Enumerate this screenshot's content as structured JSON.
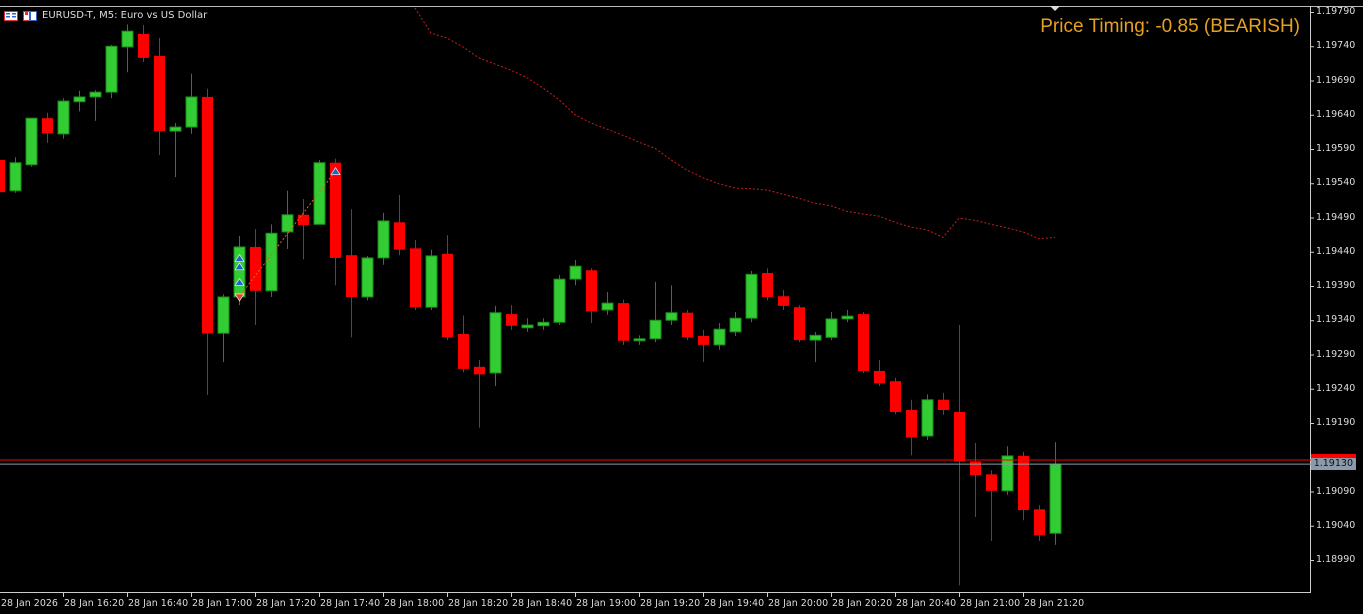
{
  "header": {
    "symbol_title": "EURUSD-T, M5:  Euro vs US Dollar",
    "icons": [
      "chart-list-icon",
      "chart-window-icon"
    ]
  },
  "indicator": {
    "price_timing_text": "Price Timing: -0.85 (BEARISH)",
    "color": "#e8a020"
  },
  "colors": {
    "bull": "#32cd32",
    "bull_border": "#1a8a1a",
    "bear": "#ff0000",
    "ma_line": "#c81e1e",
    "ask_line": "#ff0000",
    "bid_line": "#8a9aa8",
    "background": "#000000"
  },
  "price_axis": {
    "labels": [
      "1.19790",
      "1.19740",
      "1.19690",
      "1.19640",
      "1.19590",
      "1.19540",
      "1.19490",
      "1.19440",
      "1.19390",
      "1.19340",
      "1.19290",
      "1.19240",
      "1.19190",
      "1.19090",
      "1.19040",
      "1.18990"
    ],
    "current_price": "1.19130"
  },
  "time_axis": {
    "labels": [
      "28 Jan 2026",
      "28 Jan 16:20",
      "28 Jan 16:40",
      "28 Jan 17:00",
      "28 Jan 17:20",
      "28 Jan 17:40",
      "28 Jan 18:00",
      "28 Jan 18:20",
      "28 Jan 18:40",
      "28 Jan 19:00",
      "28 Jan 19:20",
      "28 Jan 19:40",
      "28 Jan 20:00",
      "28 Jan 20:20",
      "28 Jan 20:40",
      "28 Jan 21:00",
      "28 Jan 21:20"
    ]
  },
  "chart_data": {
    "type": "candlestick",
    "timeframe": "M5",
    "ylim": [
      1.1896,
      1.198
    ],
    "ohlc": [
      [
        1.19574,
        1.1958,
        1.19527,
        1.19527
      ],
      [
        1.19529,
        1.19578,
        1.19526,
        1.1957
      ],
      [
        1.19567,
        1.19635,
        1.19564,
        1.19635
      ],
      [
        1.19635,
        1.19643,
        1.19599,
        1.19613
      ],
      [
        1.19612,
        1.19664,
        1.19605,
        1.1966
      ],
      [
        1.19659,
        1.19675,
        1.19645,
        1.19666
      ],
      [
        1.19666,
        1.19676,
        1.19631,
        1.19673
      ],
      [
        1.19673,
        1.19742,
        1.19664,
        1.1974
      ],
      [
        1.19739,
        1.19772,
        1.19702,
        1.19762
      ],
      [
        1.19758,
        1.19771,
        1.19717,
        1.19723
      ],
      [
        1.19726,
        1.19752,
        1.19581,
        1.19616
      ],
      [
        1.19616,
        1.19628,
        1.19549,
        1.19622
      ],
      [
        1.19622,
        1.197,
        1.19612,
        1.19666
      ],
      [
        1.19666,
        1.19678,
        1.19231,
        1.19321
      ],
      [
        1.19321,
        1.19378,
        1.19279,
        1.19374
      ],
      [
        1.19374,
        1.19463,
        1.19362,
        1.19447
      ],
      [
        1.19447,
        1.19473,
        1.19333,
        1.19383
      ],
      [
        1.19383,
        1.1948,
        1.19374,
        1.19467
      ],
      [
        1.19469,
        1.19529,
        1.19444,
        1.19494
      ],
      [
        1.19494,
        1.19517,
        1.19429,
        1.19479
      ],
      [
        1.1948,
        1.19574,
        1.1948,
        1.1957
      ],
      [
        1.1957,
        1.19576,
        1.19391,
        1.19431
      ],
      [
        1.19435,
        1.19502,
        1.19315,
        1.19374
      ],
      [
        1.19374,
        1.19434,
        1.19369,
        1.19431
      ],
      [
        1.19431,
        1.19497,
        1.19421,
        1.19485
      ],
      [
        1.19483,
        1.19523,
        1.19435,
        1.19443
      ],
      [
        1.19445,
        1.19457,
        1.19355,
        1.19359
      ],
      [
        1.19359,
        1.19443,
        1.19355,
        1.19434
      ],
      [
        1.19437,
        1.19464,
        1.19311,
        1.19315
      ],
      [
        1.1932,
        1.19347,
        1.19264,
        1.19269
      ],
      [
        1.19272,
        1.19282,
        1.19183,
        1.19261
      ],
      [
        1.19263,
        1.19361,
        1.19244,
        1.19351
      ],
      [
        1.19349,
        1.19362,
        1.19326,
        1.19332
      ],
      [
        1.19329,
        1.19343,
        1.19323,
        1.19333
      ],
      [
        1.19332,
        1.19343,
        1.19326,
        1.19337
      ],
      [
        1.19337,
        1.19406,
        1.19333,
        1.194
      ],
      [
        1.194,
        1.19428,
        1.19391,
        1.19419
      ],
      [
        1.19413,
        1.19416,
        1.19336,
        1.19353
      ],
      [
        1.19355,
        1.19381,
        1.19348,
        1.19365
      ],
      [
        1.19365,
        1.1937,
        1.19304,
        1.1931
      ],
      [
        1.1931,
        1.19318,
        1.19304,
        1.19313
      ],
      [
        1.19313,
        1.19396,
        1.19308,
        1.1934
      ],
      [
        1.1934,
        1.19391,
        1.19333,
        1.19351
      ],
      [
        1.19351,
        1.19355,
        1.19311,
        1.19315
      ],
      [
        1.19317,
        1.19326,
        1.19279,
        1.19304
      ],
      [
        1.19304,
        1.19336,
        1.19297,
        1.19327
      ],
      [
        1.19323,
        1.19352,
        1.19317,
        1.19343
      ],
      [
        1.19343,
        1.19412,
        1.19337,
        1.19407
      ],
      [
        1.19409,
        1.19416,
        1.19369,
        1.19374
      ],
      [
        1.19375,
        1.19384,
        1.19355,
        1.19361
      ],
      [
        1.19359,
        1.19362,
        1.19308,
        1.19311
      ],
      [
        1.19311,
        1.19323,
        1.19279,
        1.19318
      ],
      [
        1.19315,
        1.19352,
        1.19311,
        1.19342
      ],
      [
        1.19342,
        1.19355,
        1.19337,
        1.19346
      ],
      [
        1.19349,
        1.19352,
        1.19263,
        1.19266
      ],
      [
        1.19266,
        1.19282,
        1.19244,
        1.19248
      ],
      [
        1.19251,
        1.19256,
        1.19203,
        1.19206
      ],
      [
        1.19209,
        1.19224,
        1.19143,
        1.19169
      ],
      [
        1.19171,
        1.19232,
        1.19165,
        1.19224
      ],
      [
        1.19224,
        1.19234,
        1.19202,
        1.19209
      ],
      [
        1.19206,
        1.19333,
        1.18953,
        1.19134
      ],
      [
        1.19134,
        1.19161,
        1.19053,
        1.19114
      ],
      [
        1.19115,
        1.19121,
        1.19018,
        1.19091
      ],
      [
        1.19091,
        1.19156,
        1.19085,
        1.19142
      ],
      [
        1.19142,
        1.19148,
        1.19048,
        1.19063
      ],
      [
        1.19064,
        1.1907,
        1.19018,
        1.19026
      ],
      [
        1.19029,
        1.19162,
        1.19012,
        1.1913
      ]
    ],
    "moving_average": {
      "start_candle": 26,
      "values": [
        1.19796,
        1.19759,
        1.19752,
        1.19739,
        1.19723,
        1.19714,
        1.19705,
        1.19694,
        1.19679,
        1.19662,
        1.1964,
        1.19628,
        1.19619,
        1.1961,
        1.196,
        1.19591,
        1.19574,
        1.19559,
        1.19548,
        1.19539,
        1.19533,
        1.19532,
        1.1953,
        1.19524,
        1.19518,
        1.19511,
        1.19507,
        1.19499,
        1.19495,
        1.19492,
        1.19483,
        1.19476,
        1.19472,
        1.19461,
        1.19489,
        1.19486,
        1.1948,
        1.19475,
        1.19469,
        1.19459,
        1.19461
      ],
      "style": "dotted"
    },
    "ask_price": 1.19136,
    "bid_price": 1.1913,
    "trade_markers": {
      "entry_candle": 15,
      "entry_price": 1.19374,
      "exit_candle": 21,
      "exit_price": 1.19557,
      "buy_arrow_prices": [
        1.1943,
        1.19418,
        1.19395
      ]
    }
  }
}
